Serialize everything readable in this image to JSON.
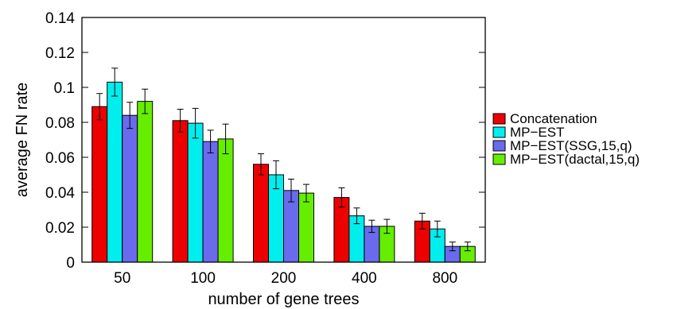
{
  "chart_data": {
    "type": "bar",
    "title": "",
    "xlabel": "number of gene trees",
    "ylabel": "average FN rate",
    "ylim": [
      0,
      0.14
    ],
    "yticks": [
      0,
      0.02,
      0.04,
      0.06,
      0.08,
      0.1,
      0.12,
      0.14
    ],
    "ytick_labels": [
      "0",
      "0.02",
      "0.04",
      "0.06",
      "0.08",
      "0.1",
      "0.12",
      "0.14"
    ],
    "categories": [
      "50",
      "100",
      "200",
      "400",
      "800"
    ],
    "grid": false,
    "legend_position": "right",
    "series": [
      {
        "name": "Concatenation",
        "color": "#ee0000",
        "values": [
          0.089,
          0.081,
          0.056,
          0.037,
          0.0235
        ],
        "errors": [
          0.0075,
          0.0065,
          0.006,
          0.0055,
          0.0045
        ]
      },
      {
        "name": "MP−EST",
        "color": "#00eeee",
        "values": [
          0.103,
          0.0795,
          0.05,
          0.0265,
          0.019
        ],
        "errors": [
          0.008,
          0.0085,
          0.008,
          0.0045,
          0.0045
        ]
      },
      {
        "name": "MP−EST(SSG,15,q)",
        "color": "#6a6aee",
        "values": [
          0.084,
          0.069,
          0.041,
          0.0205,
          0.009
        ],
        "errors": [
          0.0075,
          0.0065,
          0.0065,
          0.0035,
          0.0025
        ]
      },
      {
        "name": "MP−EST(dactal,15,q)",
        "color": "#66ee00",
        "values": [
          0.092,
          0.0705,
          0.0395,
          0.0205,
          0.009
        ],
        "errors": [
          0.007,
          0.0085,
          0.005,
          0.004,
          0.0025
        ]
      }
    ]
  }
}
